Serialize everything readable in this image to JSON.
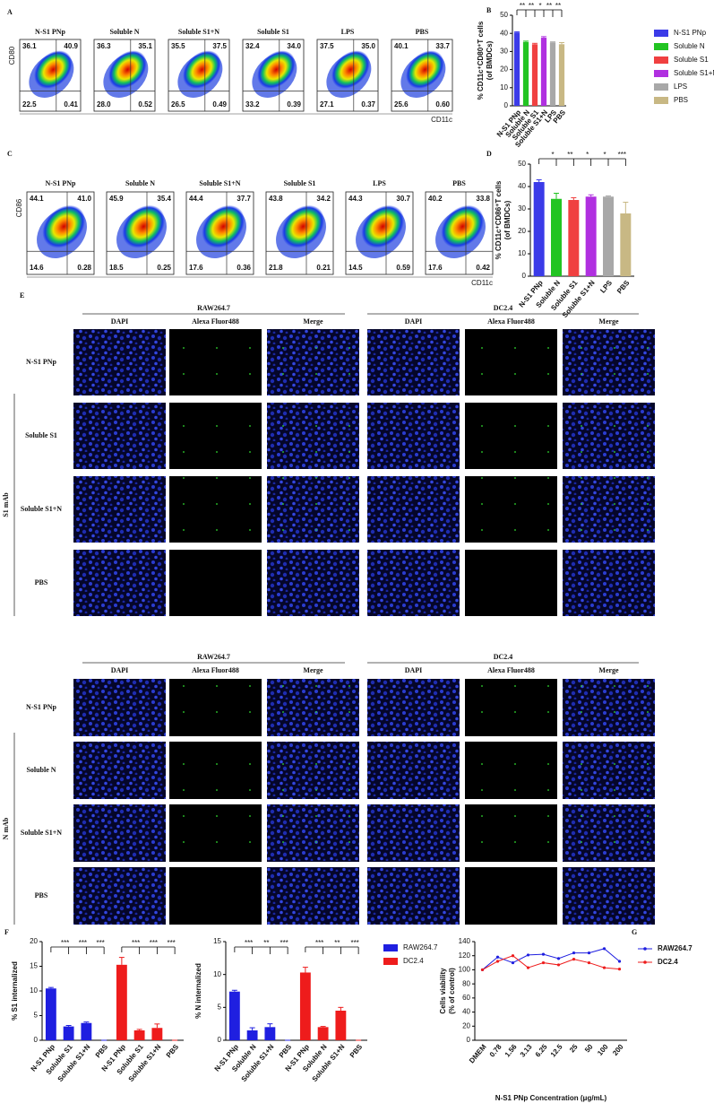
{
  "panel_labels": [
    "A",
    "B",
    "C",
    "D",
    "E",
    "F",
    "G"
  ],
  "flow": [
    {
      "ylabel": "CD80",
      "xlabel": "CD11c",
      "plots": [
        {
          "title": "N-S1 PNp",
          "quadrants": [
            "36.1",
            "40.9",
            "22.5",
            "0.41"
          ]
        },
        {
          "title": "Soluble N",
          "quadrants": [
            "36.3",
            "35.1",
            "28.0",
            "0.52"
          ]
        },
        {
          "title": "Soluble S1+N",
          "quadrants": [
            "35.5",
            "37.5",
            "26.5",
            "0.49"
          ]
        },
        {
          "title": "Soluble S1",
          "quadrants": [
            "32.4",
            "34.0",
            "33.2",
            "0.39"
          ]
        },
        {
          "title": "LPS",
          "quadrants": [
            "37.5",
            "35.0",
            "27.1",
            "0.37"
          ]
        },
        {
          "title": "PBS",
          "quadrants": [
            "40.1",
            "33.7",
            "25.6",
            "0.60"
          ]
        }
      ]
    },
    {
      "ylabel": "CD86",
      "xlabel": "CD11c",
      "plots": [
        {
          "title": "N-S1 PNp",
          "quadrants": [
            "44.1",
            "41.0",
            "14.6",
            "0.28"
          ]
        },
        {
          "title": "Soluble N",
          "quadrants": [
            "45.9",
            "35.4",
            "18.5",
            "0.25"
          ]
        },
        {
          "title": "Soluble S1+N",
          "quadrants": [
            "44.4",
            "37.7",
            "17.6",
            "0.36"
          ]
        },
        {
          "title": "Soluble S1",
          "quadrants": [
            "43.8",
            "34.2",
            "21.8",
            "0.21"
          ]
        },
        {
          "title": "LPS",
          "quadrants": [
            "44.3",
            "30.7",
            "14.5",
            "0.59"
          ]
        },
        {
          "title": "PBS",
          "quadrants": [
            "40.2",
            "33.8",
            "17.6",
            "0.42"
          ]
        }
      ]
    }
  ],
  "imaging": {
    "groups": [
      "RAW264.7",
      "DC2.4"
    ],
    "channels": [
      "DAPI",
      "Alexa Fluor488",
      "Merge"
    ],
    "blocks": [
      {
        "antibody": "S1 mAb",
        "rows": [
          "N-S1 PNp",
          "Soluble S1",
          "Soluble S1+N",
          "PBS"
        ]
      },
      {
        "antibody": "N mAb",
        "rows": [
          "N-S1 PNp",
          "Soluble N",
          "Soluble S1+N",
          "PBS"
        ]
      }
    ]
  },
  "chart_data": [
    {
      "type": "bar",
      "ylabel": [
        "% CD11c⁺CD80⁺T cells",
        "(of BMDCs)"
      ],
      "categories": [
        "N-S1 PNp",
        "Soluble N",
        "Soluble S1",
        "Soluble S1+N",
        "LPS",
        "PBS"
      ],
      "values": [
        40.5,
        35.2,
        34,
        37.6,
        35,
        34
      ],
      "errors": [
        0.4,
        0.5,
        0.5,
        0.6,
        0.3,
        0.9
      ],
      "colors": [
        "#3b3be8",
        "#22c422",
        "#f04040",
        "#b030e0",
        "#a8a8a8",
        "#c8b884"
      ],
      "ylim": [
        0,
        50
      ],
      "yticks": [
        0,
        10,
        20,
        30,
        40,
        50
      ],
      "significance": [
        "**",
        "**",
        "*",
        "**",
        "**"
      ],
      "legend": true
    },
    {
      "type": "bar",
      "ylabel": [
        "% CD11c⁺CD86⁺T cells",
        "(of BMDCs)"
      ],
      "categories": [
        "N-S1 PNp",
        "Soluble N",
        "Soluble S1",
        "Soluble S1+N",
        "LPS",
        "PBS"
      ],
      "values": [
        42,
        34.5,
        34,
        35.5,
        35.5,
        28
      ],
      "errors": [
        1,
        2.5,
        1,
        0.8,
        0.3,
        5
      ],
      "colors": [
        "#3b3be8",
        "#22c422",
        "#f04040",
        "#b030e0",
        "#a8a8a8",
        "#c8b884"
      ],
      "ylim": [
        0,
        50
      ],
      "yticks": [
        0,
        10,
        20,
        30,
        40,
        50
      ],
      "significance": [
        "*",
        "**",
        "*",
        "*",
        "***"
      ],
      "legend": false
    },
    {
      "type": "grouped_bar",
      "ylabel": "% S1 internalized",
      "categories": [
        "N-S1 PNp",
        "Soluble S1",
        "Soluble S1+N",
        "PBS"
      ],
      "series": [
        {
          "color": "#1f1fe0",
          "values": [
            10.5,
            2.8,
            3.5,
            0
          ],
          "errors": [
            0.2,
            0.2,
            0.2,
            0
          ],
          "significance": [
            "***",
            "***",
            "***"
          ]
        },
        {
          "color": "#ee1c1c",
          "values": [
            15.3,
            2.0,
            2.5,
            0
          ],
          "errors": [
            1.5,
            0.2,
            0.8,
            0
          ],
          "significance": [
            "***",
            "***",
            "***"
          ]
        }
      ],
      "ylim": [
        0,
        20
      ],
      "yticks": [
        0,
        5,
        10,
        15,
        20
      ],
      "legend": false
    },
    {
      "type": "grouped_bar",
      "ylabel": "% N internalized",
      "categories": [
        "N-S1 PNp",
        "Soluble N",
        "Soluble S1+N",
        "PBS"
      ],
      "series": [
        {
          "name": "RAW264.7",
          "color": "#1f1fe0",
          "values": [
            7.4,
            1.5,
            2.0,
            0
          ],
          "errors": [
            0.2,
            0.4,
            0.5,
            0
          ],
          "significance": [
            "***",
            "**",
            "***"
          ]
        },
        {
          "name": "DC2.4",
          "color": "#ee1c1c",
          "values": [
            10.3,
            2.0,
            4.5,
            0
          ],
          "errors": [
            0.8,
            0.1,
            0.5,
            0
          ],
          "significance": [
            "***",
            "**",
            "***"
          ]
        }
      ],
      "ylim": [
        0,
        15
      ],
      "yticks": [
        0,
        5,
        10,
        15
      ],
      "legend": true
    },
    {
      "type": "line",
      "ylabel": [
        "Cells viability",
        "(% of control)"
      ],
      "xlabel": "N-S1 PNp Concentration (μg/mL)",
      "categories": [
        "DMEM",
        "0.78",
        "1.56",
        "3.13",
        "6.25",
        "12.5",
        "25",
        "50",
        "100",
        "200"
      ],
      "series": [
        {
          "name": "RAW264.7",
          "color": "#1f1fe0",
          "values": [
            100,
            118,
            110,
            121,
            122,
            116,
            124,
            124,
            130,
            112
          ]
        },
        {
          "name": "DC2.4",
          "color": "#ee1c1c",
          "values": [
            100,
            112,
            120,
            103,
            110,
            107,
            115,
            110,
            103,
            101
          ]
        }
      ],
      "ylim": [
        0,
        140
      ],
      "yticks": [
        0,
        20,
        40,
        60,
        80,
        100,
        120,
        140
      ],
      "legend": true
    }
  ]
}
